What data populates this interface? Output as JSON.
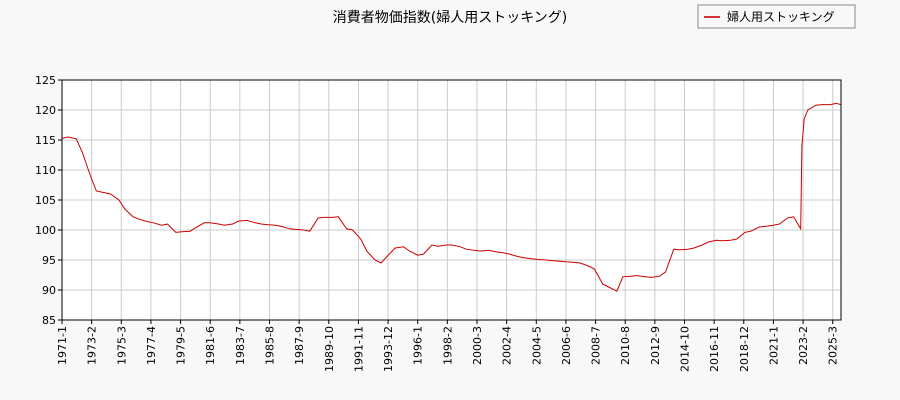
{
  "chart_data": {
    "type": "line",
    "title": "消費者物価指数(婦人用ストッキング)",
    "xlabel": "",
    "ylabel": "",
    "ylim": [
      85,
      125
    ],
    "yticks": [
      85,
      90,
      95,
      100,
      105,
      110,
      115,
      120,
      125
    ],
    "xticks": [
      "1971-1",
      "1973-2",
      "1975-3",
      "1977-4",
      "1979-5",
      "1981-6",
      "1983-7",
      "1985-8",
      "1987-9",
      "1989-10",
      "1991-11",
      "1993-12",
      "1996-1",
      "1998-2",
      "2000-3",
      "2002-4",
      "2004-5",
      "2006-6",
      "2008-7",
      "2010-8",
      "2012-9",
      "2014-10",
      "2016-11",
      "2018-12",
      "2021-1",
      "2023-2",
      "2025-3"
    ],
    "grid": true,
    "legend_position": "top-right",
    "series": [
      {
        "name": "婦人用ストッキング",
        "color": "#cc0000",
        "x": [
          "1971-1",
          "1971-6",
          "1972-1",
          "1972-6",
          "1973-1",
          "1973-6",
          "1974-1",
          "1974-6",
          "1975-1",
          "1975-6",
          "1976-1",
          "1976-6",
          "1977-1",
          "1977-6",
          "1978-1",
          "1978-6",
          "1979-1",
          "1979-6",
          "1980-1",
          "1980-6",
          "1981-1",
          "1981-6",
          "1982-1",
          "1982-6",
          "1983-1",
          "1983-6",
          "1984-1",
          "1984-6",
          "1985-1",
          "1985-6",
          "1986-1",
          "1986-6",
          "1987-1",
          "1987-6",
          "1988-1",
          "1988-6",
          "1989-1",
          "1989-6",
          "1990-1",
          "1990-6",
          "1991-1",
          "1991-6",
          "1992-1",
          "1992-6",
          "1993-1",
          "1993-6",
          "1994-1",
          "1994-6",
          "1995-1",
          "1995-6",
          "1996-1",
          "1996-6",
          "1997-1",
          "1997-6",
          "1998-1",
          "1998-6",
          "1999-1",
          "1999-6",
          "2000-1",
          "2000-6",
          "2001-1",
          "2001-6",
          "2002-1",
          "2002-6",
          "2003-1",
          "2003-6",
          "2004-1",
          "2004-6",
          "2005-1",
          "2005-6",
          "2006-1",
          "2006-6",
          "2007-1",
          "2007-6",
          "2008-1",
          "2008-6",
          "2009-1",
          "2009-6",
          "2010-1",
          "2010-6",
          "2011-1",
          "2011-6",
          "2012-1",
          "2012-6",
          "2013-1",
          "2013-6",
          "2014-1",
          "2014-6",
          "2015-1",
          "2015-6",
          "2016-1",
          "2016-6",
          "2017-1",
          "2017-6",
          "2018-1",
          "2018-6",
          "2019-1",
          "2019-6",
          "2020-1",
          "2020-6",
          "2021-1",
          "2021-6",
          "2022-1",
          "2022-6",
          "2022-12",
          "2023-1",
          "2023-3",
          "2023-6",
          "2024-1",
          "2024-6",
          "2025-1",
          "2025-6",
          "2025-10"
        ],
        "values": [
          115.3,
          115.5,
          115.2,
          113.0,
          109.0,
          106.5,
          106.2,
          106.0,
          105.0,
          103.5,
          102.2,
          101.8,
          101.4,
          101.2,
          100.8,
          101.0,
          99.6,
          99.7,
          99.8,
          100.4,
          101.2,
          101.2,
          101.0,
          100.8,
          101.0,
          101.5,
          101.6,
          101.3,
          101.0,
          100.9,
          100.8,
          100.6,
          100.2,
          100.1,
          100.0,
          99.8,
          102.0,
          102.1,
          102.1,
          102.2,
          100.2,
          100.0,
          98.5,
          96.5,
          95.0,
          94.5,
          96.0,
          97.0,
          97.2,
          96.5,
          95.8,
          96.0,
          97.5,
          97.3,
          97.5,
          97.5,
          97.2,
          96.8,
          96.6,
          96.5,
          96.6,
          96.4,
          96.2,
          96.0,
          95.6,
          95.4,
          95.2,
          95.1,
          95.0,
          94.9,
          94.8,
          94.7,
          94.6,
          94.5,
          94.0,
          93.5,
          91.0,
          90.5,
          89.8,
          92.2,
          92.3,
          92.4,
          92.2,
          92.1,
          92.3,
          93.0,
          96.8,
          96.7,
          96.8,
          97.0,
          97.5,
          98.0,
          98.3,
          98.2,
          98.3,
          98.5,
          99.6,
          99.8,
          100.5,
          100.6,
          100.8,
          101.0,
          102.0,
          102.2,
          100.2,
          114.0,
          118.5,
          120.0,
          120.8,
          120.9,
          120.9,
          121.1,
          120.9
        ]
      }
    ]
  }
}
